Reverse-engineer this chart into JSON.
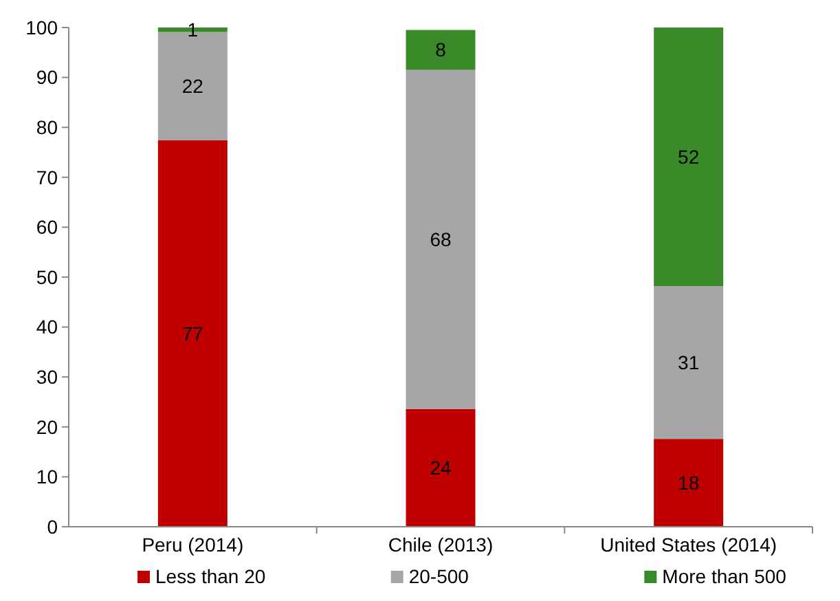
{
  "chart_data": {
    "type": "bar",
    "stacked": true,
    "categories": [
      "Peru (2014)",
      "Chile (2013)",
      "United States (2014)"
    ],
    "series": [
      {
        "name": "Less than 20",
        "color": "#c00000",
        "values": [
          77.4,
          23.6,
          17.6
        ],
        "value_labels": [
          "77",
          "24",
          "18"
        ]
      },
      {
        "name": "20-500",
        "color": "#a6a6a6",
        "values": [
          21.7,
          67.9,
          30.6
        ],
        "value_labels": [
          "22",
          "68",
          "31"
        ]
      },
      {
        "name": "More than 500",
        "color": "#3a8a2a",
        "values": [
          0.9,
          8.0,
          51.8
        ],
        "value_labels": [
          "1",
          "8",
          "52"
        ]
      }
    ],
    "ylim": [
      0,
      100
    ],
    "yticks": [
      0,
      10,
      20,
      30,
      40,
      50,
      60,
      70,
      80,
      90,
      100
    ],
    "grid": false,
    "legend": "bottom"
  }
}
